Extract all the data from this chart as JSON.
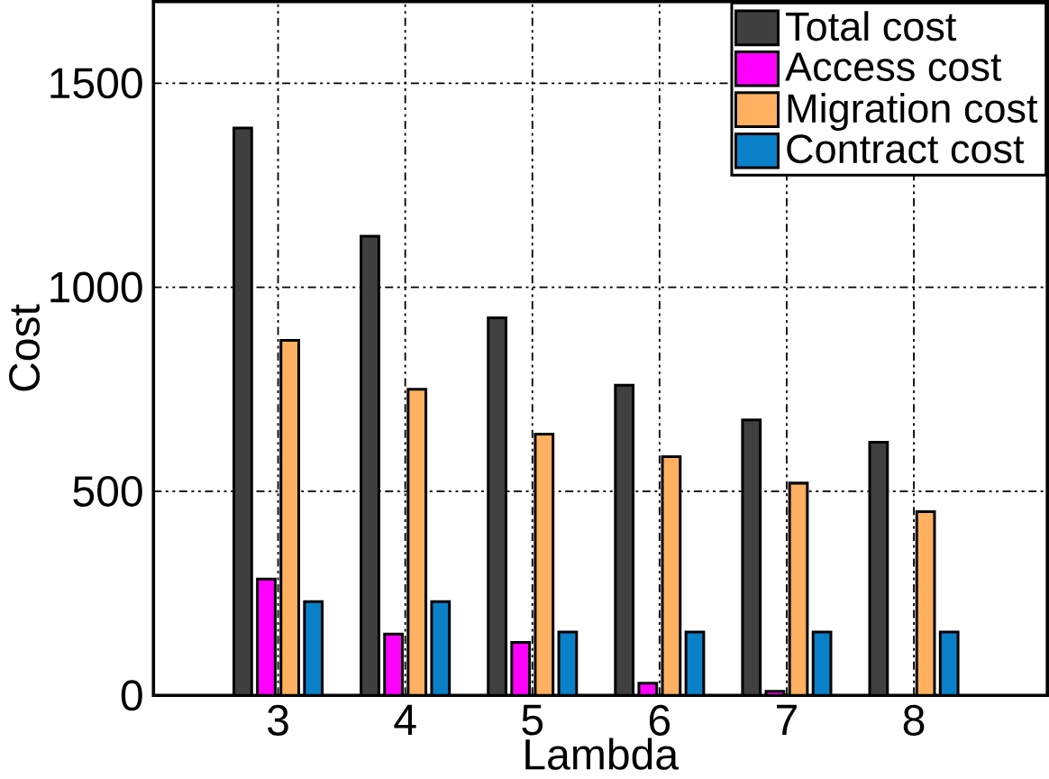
{
  "chart_data": {
    "type": "bar",
    "xlabel": "Lambda",
    "ylabel": "Cost",
    "categories": [
      "3",
      "4",
      "5",
      "6",
      "7",
      "8"
    ],
    "series": [
      {
        "name": "Total cost",
        "color": "#404040",
        "values": [
          1390,
          1125,
          925,
          760,
          675,
          620
        ]
      },
      {
        "name": "Access cost",
        "color": "#ff00ff",
        "values": [
          285,
          150,
          130,
          30,
          10,
          null
        ]
      },
      {
        "name": "Migration cost",
        "color": "#ffb060",
        "values": [
          870,
          750,
          640,
          585,
          520,
          450
        ]
      },
      {
        "name": "Contract cost",
        "color": "#0a80c8",
        "values": [
          230,
          230,
          155,
          155,
          155,
          155
        ]
      }
    ],
    "ylim": [
      0,
      1700
    ],
    "yticks": [
      0,
      500,
      1000,
      1500
    ],
    "grid": true,
    "legend": "top right"
  }
}
